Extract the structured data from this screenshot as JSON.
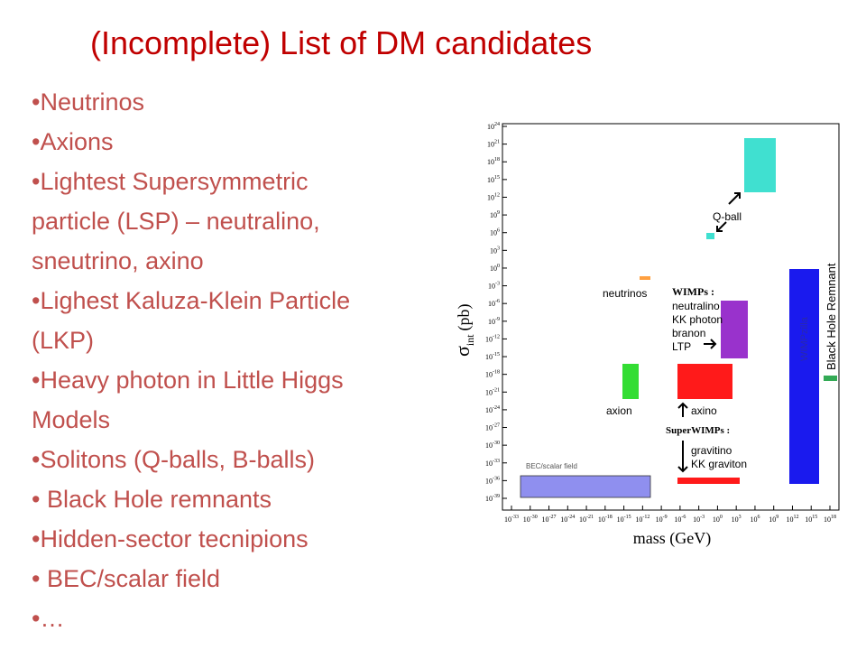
{
  "title": "(Incomplete) List of DM candidates",
  "bullets": [
    [
      "•Neutrinos"
    ],
    [
      "•Axions"
    ],
    [
      "•Lightest Supersymmetric",
      "particle (LSP) – neutralino,",
      "sneutrino, axino"
    ],
    [
      "•Lighest Kaluza-Klein Particle",
      "(LKP)"
    ],
    [
      "•Heavy photon in Little Higgs",
      "Models"
    ],
    [
      "•Solitons (Q-balls, B-balls)"
    ],
    [
      "• Black Hole remnants"
    ],
    [
      "•Hidden-sector tecnipions"
    ],
    [
      "• BEC/scalar field"
    ],
    [
      "•…"
    ]
  ],
  "figure": {
    "y_label": {
      "symbol": "σ",
      "subscript": "int",
      "unit": "(pb)"
    },
    "x_label": "mass (GeV)",
    "y_ticks": [
      {
        "base": "10",
        "exponent": "24"
      },
      {
        "base": "10",
        "exponent": "21"
      },
      {
        "base": "10",
        "exponent": "18"
      },
      {
        "base": "10",
        "exponent": "15"
      },
      {
        "base": "10",
        "exponent": "12"
      },
      {
        "base": "10",
        "exponent": "9"
      },
      {
        "base": "10",
        "exponent": "6"
      },
      {
        "base": "10",
        "exponent": "3"
      },
      {
        "base": "10",
        "exponent": "0"
      },
      {
        "base": "10",
        "exponent": "-3"
      },
      {
        "base": "10",
        "exponent": "-6"
      },
      {
        "base": "10",
        "exponent": "-9"
      },
      {
        "base": "10",
        "exponent": "-12"
      },
      {
        "base": "10",
        "exponent": "-15"
      },
      {
        "base": "10",
        "exponent": "-18"
      },
      {
        "base": "10",
        "exponent": "-21"
      },
      {
        "base": "10",
        "exponent": "-24"
      },
      {
        "base": "10",
        "exponent": "-27"
      },
      {
        "base": "10",
        "exponent": "-30"
      },
      {
        "base": "10",
        "exponent": "-33"
      },
      {
        "base": "10",
        "exponent": "-36"
      },
      {
        "base": "10",
        "exponent": "-39"
      }
    ],
    "x_ticks": [
      {
        "base": "10",
        "exponent": "-33"
      },
      {
        "base": "10",
        "exponent": "-30"
      },
      {
        "base": "10",
        "exponent": "-27"
      },
      {
        "base": "10",
        "exponent": "-24"
      },
      {
        "base": "10",
        "exponent": "-21"
      },
      {
        "base": "10",
        "exponent": "-18"
      },
      {
        "base": "10",
        "exponent": "-15"
      },
      {
        "base": "10",
        "exponent": "-12"
      },
      {
        "base": "10",
        "exponent": "-9"
      },
      {
        "base": "10",
        "exponent": "-6"
      },
      {
        "base": "10",
        "exponent": "-3"
      },
      {
        "base": "10",
        "exponent": "0"
      },
      {
        "base": "10",
        "exponent": "3"
      },
      {
        "base": "10",
        "exponent": "6"
      },
      {
        "base": "10",
        "exponent": "9"
      },
      {
        "base": "10",
        "exponent": "12"
      },
      {
        "base": "10",
        "exponent": "15"
      },
      {
        "base": "10",
        "exponent": "18"
      }
    ],
    "labels": {
      "qball": "Q-ball",
      "neutrinos": "neutrinos",
      "wimps": "WIMPs :",
      "wimp_list": [
        "neutralino",
        "KK photon",
        "branon",
        "LTP"
      ],
      "axion": "axion",
      "axino": "axino",
      "superwimps": "SuperWIMPs :",
      "superwimp_list": [
        "gravitino",
        "KK graviton"
      ],
      "bec": "BEC/scalar field",
      "wimpzilla": "WIMPzilla",
      "black_hole": "Black Hole Remnant"
    }
  }
}
